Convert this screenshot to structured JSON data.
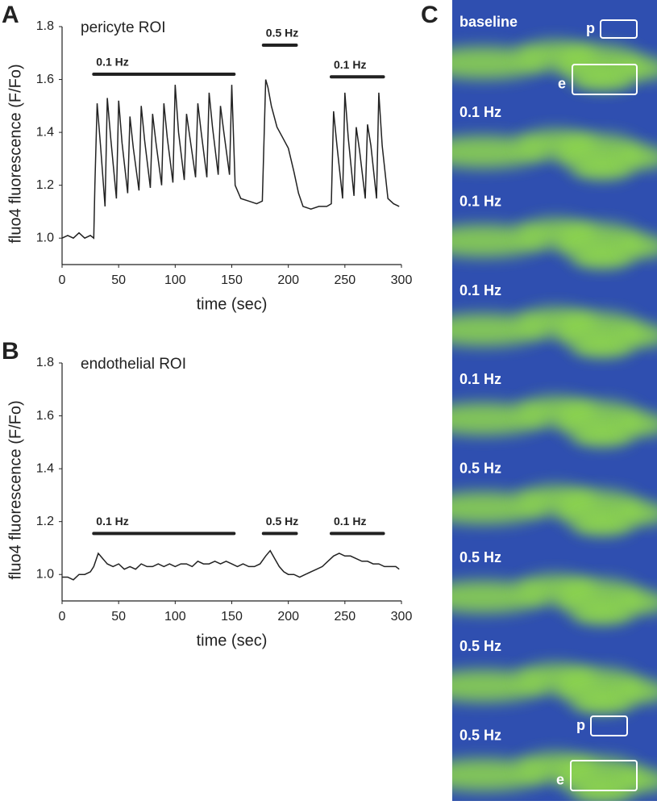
{
  "chart_data": [
    {
      "type": "line",
      "panel_label": "A",
      "title": "pericyte ROI",
      "x_label": "time (sec)",
      "y_label": "fluo4 fluorescence (F/Fo)",
      "color": "#222222",
      "xlim": [
        0,
        300
      ],
      "xticks": [
        0,
        50,
        100,
        150,
        200,
        250,
        300
      ],
      "ylim": [
        0.9,
        1.8
      ],
      "yticks": [
        {
          "value": 1.0,
          "label": "1.0"
        },
        {
          "value": 1.2,
          "label": "1.2"
        },
        {
          "value": 1.4,
          "label": "1.4"
        },
        {
          "value": 1.6,
          "label": "1.6"
        },
        {
          "value": 1.8,
          "label": "1.8"
        }
      ],
      "x": [
        0,
        5,
        10,
        15,
        20,
        25,
        28,
        29,
        31,
        34,
        38,
        40,
        43,
        48,
        50,
        53,
        58,
        60,
        63,
        68,
        70,
        73,
        78,
        80,
        83,
        88,
        90,
        93,
        98,
        100,
        103,
        108,
        110,
        113,
        118,
        120,
        123,
        128,
        130,
        133,
        138,
        140,
        143,
        148,
        150,
        153,
        158,
        165,
        172,
        177,
        180,
        182,
        185,
        190,
        195,
        200,
        205,
        209,
        213,
        220,
        227,
        234,
        238,
        240,
        243,
        248,
        250,
        253,
        258,
        260,
        263,
        268,
        270,
        273,
        278,
        280,
        283,
        288,
        293,
        298
      ],
      "values": [
        1.0,
        1.01,
        1.0,
        1.02,
        1.0,
        1.01,
        1.0,
        1.2,
        1.51,
        1.35,
        1.12,
        1.53,
        1.38,
        1.15,
        1.52,
        1.36,
        1.17,
        1.46,
        1.34,
        1.18,
        1.5,
        1.37,
        1.19,
        1.47,
        1.36,
        1.2,
        1.51,
        1.38,
        1.21,
        1.58,
        1.4,
        1.22,
        1.47,
        1.38,
        1.23,
        1.51,
        1.4,
        1.23,
        1.55,
        1.42,
        1.24,
        1.5,
        1.4,
        1.24,
        1.58,
        1.2,
        1.15,
        1.14,
        1.13,
        1.14,
        1.6,
        1.57,
        1.5,
        1.42,
        1.38,
        1.34,
        1.25,
        1.17,
        1.12,
        1.11,
        1.12,
        1.12,
        1.13,
        1.48,
        1.35,
        1.15,
        1.55,
        1.38,
        1.16,
        1.42,
        1.33,
        1.15,
        1.43,
        1.35,
        1.15,
        1.55,
        1.35,
        1.15,
        1.13,
        1.12
      ],
      "stimuli": [
        {
          "label": "0.1 Hz",
          "x": [
            28,
            152
          ],
          "y": 1.62
        },
        {
          "label": "0.5 Hz",
          "x": [
            178,
            207
          ],
          "y": 1.73
        },
        {
          "label": "0.1 Hz",
          "x": [
            238,
            284
          ],
          "y": 1.61
        }
      ]
    },
    {
      "type": "line",
      "panel_label": "B",
      "title": "endothelial ROI",
      "x_label": "time (sec)",
      "y_label": "fluo4 fluorescence (F/Fo)",
      "color": "#222222",
      "xlim": [
        0,
        300
      ],
      "xticks": [
        0,
        50,
        100,
        150,
        200,
        250,
        300
      ],
      "ylim": [
        0.9,
        1.8
      ],
      "yticks": [
        {
          "value": 1.0,
          "label": "1.0"
        },
        {
          "value": 1.2,
          "label": "1.2"
        },
        {
          "value": 1.4,
          "label": "1.4"
        },
        {
          "value": 1.6,
          "label": "1.6"
        },
        {
          "value": 1.8,
          "label": "1.8"
        }
      ],
      "x": [
        0,
        5,
        10,
        15,
        20,
        25,
        28,
        32,
        36,
        40,
        45,
        50,
        55,
        60,
        65,
        70,
        75,
        80,
        85,
        90,
        95,
        100,
        105,
        110,
        115,
        120,
        125,
        130,
        135,
        140,
        145,
        150,
        155,
        160,
        165,
        170,
        175,
        180,
        184,
        188,
        192,
        196,
        200,
        205,
        210,
        215,
        220,
        225,
        230,
        235,
        240,
        245,
        250,
        255,
        260,
        265,
        270,
        275,
        280,
        285,
        290,
        295,
        298
      ],
      "values": [
        0.99,
        0.99,
        0.98,
        1.0,
        1.0,
        1.01,
        1.03,
        1.08,
        1.06,
        1.04,
        1.03,
        1.04,
        1.02,
        1.03,
        1.02,
        1.04,
        1.03,
        1.03,
        1.04,
        1.03,
        1.04,
        1.03,
        1.04,
        1.04,
        1.03,
        1.05,
        1.04,
        1.04,
        1.05,
        1.04,
        1.05,
        1.04,
        1.03,
        1.04,
        1.03,
        1.03,
        1.04,
        1.07,
        1.09,
        1.06,
        1.03,
        1.01,
        1.0,
        1.0,
        0.99,
        1.0,
        1.01,
        1.02,
        1.03,
        1.05,
        1.07,
        1.08,
        1.07,
        1.07,
        1.06,
        1.05,
        1.05,
        1.04,
        1.04,
        1.03,
        1.03,
        1.03,
        1.02
      ],
      "stimuli": [
        {
          "label": "0.1 Hz",
          "x": [
            28,
            152
          ],
          "y": 1.155
        },
        {
          "label": "0.5 Hz",
          "x": [
            178,
            207
          ],
          "y": 1.155
        },
        {
          "label": "0.1 Hz",
          "x": [
            238,
            284
          ],
          "y": 1.155
        }
      ]
    }
  ],
  "image_panel": {
    "panel_label": "C",
    "frames": [
      "baseline",
      "0.1 Hz",
      "0.1 Hz",
      "0.1 Hz",
      "0.1 Hz",
      "0.5 Hz",
      "0.5 Hz",
      "0.5 Hz",
      "0.5 Hz"
    ],
    "roi_labels": [
      "p",
      "e"
    ]
  }
}
